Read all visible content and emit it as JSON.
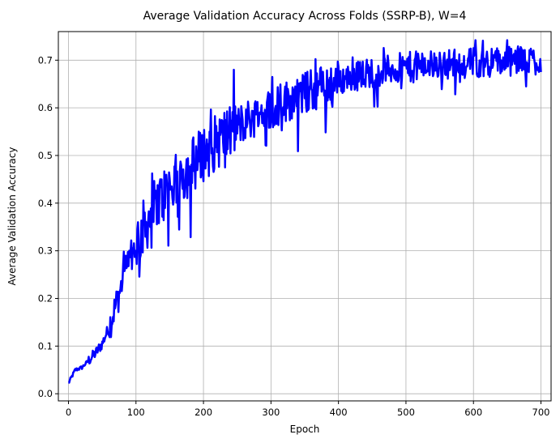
{
  "chart_data": {
    "type": "line",
    "title": "Average Validation Accuracy Across Folds (SSRP-B), W=4",
    "xlabel": "Epoch",
    "ylabel": "Average Validation Accuracy",
    "xlim": [
      -15,
      715
    ],
    "ylim": [
      -0.015,
      0.76
    ],
    "xticks": [
      0,
      100,
      200,
      300,
      400,
      500,
      600,
      700
    ],
    "yticks": [
      0.0,
      0.1,
      0.2,
      0.3,
      0.4,
      0.5,
      0.6,
      0.7
    ],
    "grid": true,
    "line_color": "#0000ff",
    "series": [
      {
        "x": [
          0,
          10,
          20,
          30,
          40,
          50,
          60,
          70,
          80,
          90,
          100,
          110,
          120,
          130,
          140,
          150,
          160,
          170,
          180,
          190,
          200,
          210,
          220,
          230,
          240,
          250,
          260,
          270,
          280,
          290,
          300,
          320,
          340,
          360,
          380,
          400,
          420,
          440,
          460,
          480,
          500,
          520,
          540,
          560,
          580,
          600,
          620,
          640,
          660,
          680,
          700
        ],
        "values": [
          0.022,
          0.05,
          0.055,
          0.07,
          0.085,
          0.105,
          0.14,
          0.185,
          0.235,
          0.275,
          0.315,
          0.345,
          0.37,
          0.395,
          0.415,
          0.43,
          0.445,
          0.46,
          0.475,
          0.49,
          0.505,
          0.515,
          0.53,
          0.54,
          0.55,
          0.56,
          0.57,
          0.578,
          0.585,
          0.592,
          0.6,
          0.612,
          0.625,
          0.637,
          0.648,
          0.658,
          0.665,
          0.672,
          0.677,
          0.681,
          0.685,
          0.688,
          0.69,
          0.692,
          0.694,
          0.695,
          0.696,
          0.697,
          0.698,
          0.699,
          0.7
        ]
      }
    ]
  }
}
